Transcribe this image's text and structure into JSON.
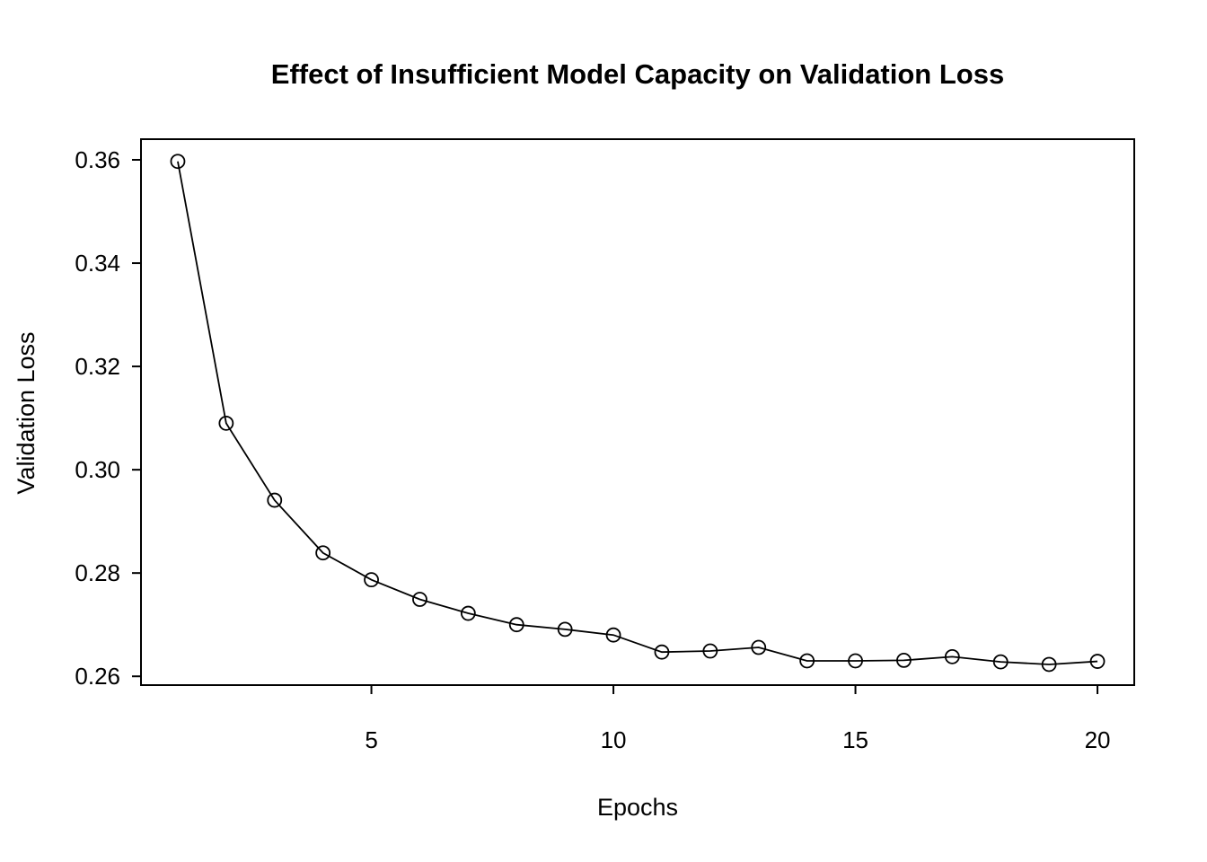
{
  "page": {
    "background_color": "#ffffff",
    "foreground_color": "#000000"
  },
  "chart_data": {
    "type": "line",
    "title": "Effect of Insufficient Model Capacity on Validation Loss",
    "xlabel": "Epochs",
    "ylabel": "Validation Loss",
    "grid": false,
    "legend": "none",
    "marker": "open-circle",
    "line_color": "#000000",
    "xlim": [
      0.24,
      20.76
    ],
    "ylim": [
      0.2583,
      0.364
    ],
    "x_ticks": [
      5,
      10,
      15,
      20
    ],
    "x_tick_labels": [
      "5",
      "10",
      "15",
      "20"
    ],
    "y_ticks": [
      0.26,
      0.28,
      0.3,
      0.32,
      0.34,
      0.36
    ],
    "y_tick_labels": [
      "0.26",
      "0.28",
      "0.30",
      "0.32",
      "0.34",
      "0.36"
    ],
    "x": [
      1,
      2,
      3,
      4,
      5,
      6,
      7,
      8,
      9,
      10,
      11,
      12,
      13,
      14,
      15,
      16,
      17,
      18,
      19,
      20
    ],
    "series": [
      {
        "name": "validation_loss",
        "values": [
          0.3597,
          0.309,
          0.2941,
          0.2839,
          0.2787,
          0.2749,
          0.2722,
          0.27,
          0.2691,
          0.268,
          0.2647,
          0.2649,
          0.2656,
          0.263,
          0.263,
          0.2631,
          0.2638,
          0.2628,
          0.2623,
          0.2629
        ]
      }
    ]
  }
}
